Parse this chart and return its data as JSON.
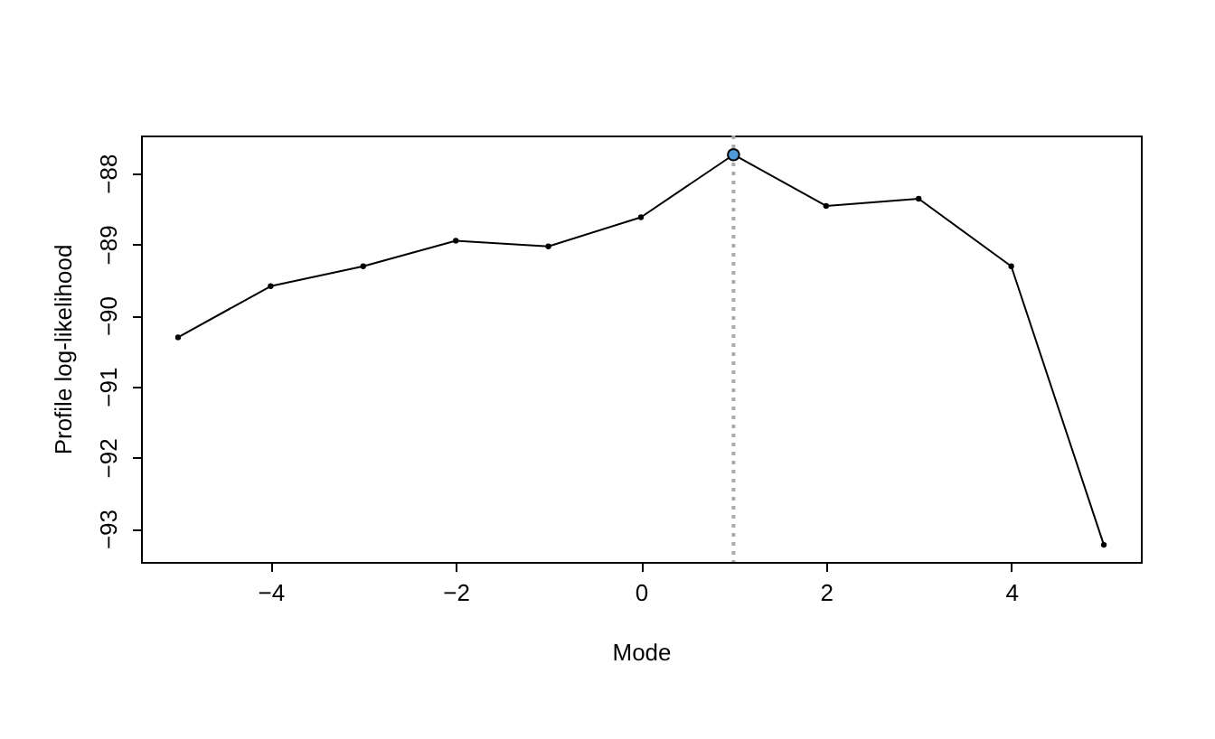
{
  "chart_data": {
    "type": "line",
    "xlabel": "Mode",
    "ylabel": "Profile log-likelihood",
    "xlim": [
      -5.4,
      5.4
    ],
    "ylim": [
      -93.47,
      -87.47
    ],
    "xticks": [
      -4,
      -2,
      0,
      2,
      4
    ],
    "yticks": [
      -93,
      -92,
      -91,
      -90,
      -89,
      -88
    ],
    "marker": "circle",
    "line_style": "solid",
    "series": [
      {
        "type": "line",
        "color": "#000000",
        "x": [
          -5,
          -4,
          -3,
          -2,
          -1,
          0,
          1,
          2,
          3,
          4,
          5
        ],
        "values": [
          -90.31,
          -89.59,
          -89.31,
          -88.95,
          -89.03,
          -88.62,
          -87.74,
          -88.46,
          -88.36,
          -89.31,
          -93.23
        ]
      },
      {
        "type": "scatter",
        "color": "#4f9ad6",
        "x": [
          1
        ],
        "values": [
          -87.74
        ]
      }
    ],
    "ref_lines": [
      {
        "axis": "x",
        "value": 1,
        "color": "#aaaaaa",
        "line_style": "dotted"
      }
    ]
  }
}
